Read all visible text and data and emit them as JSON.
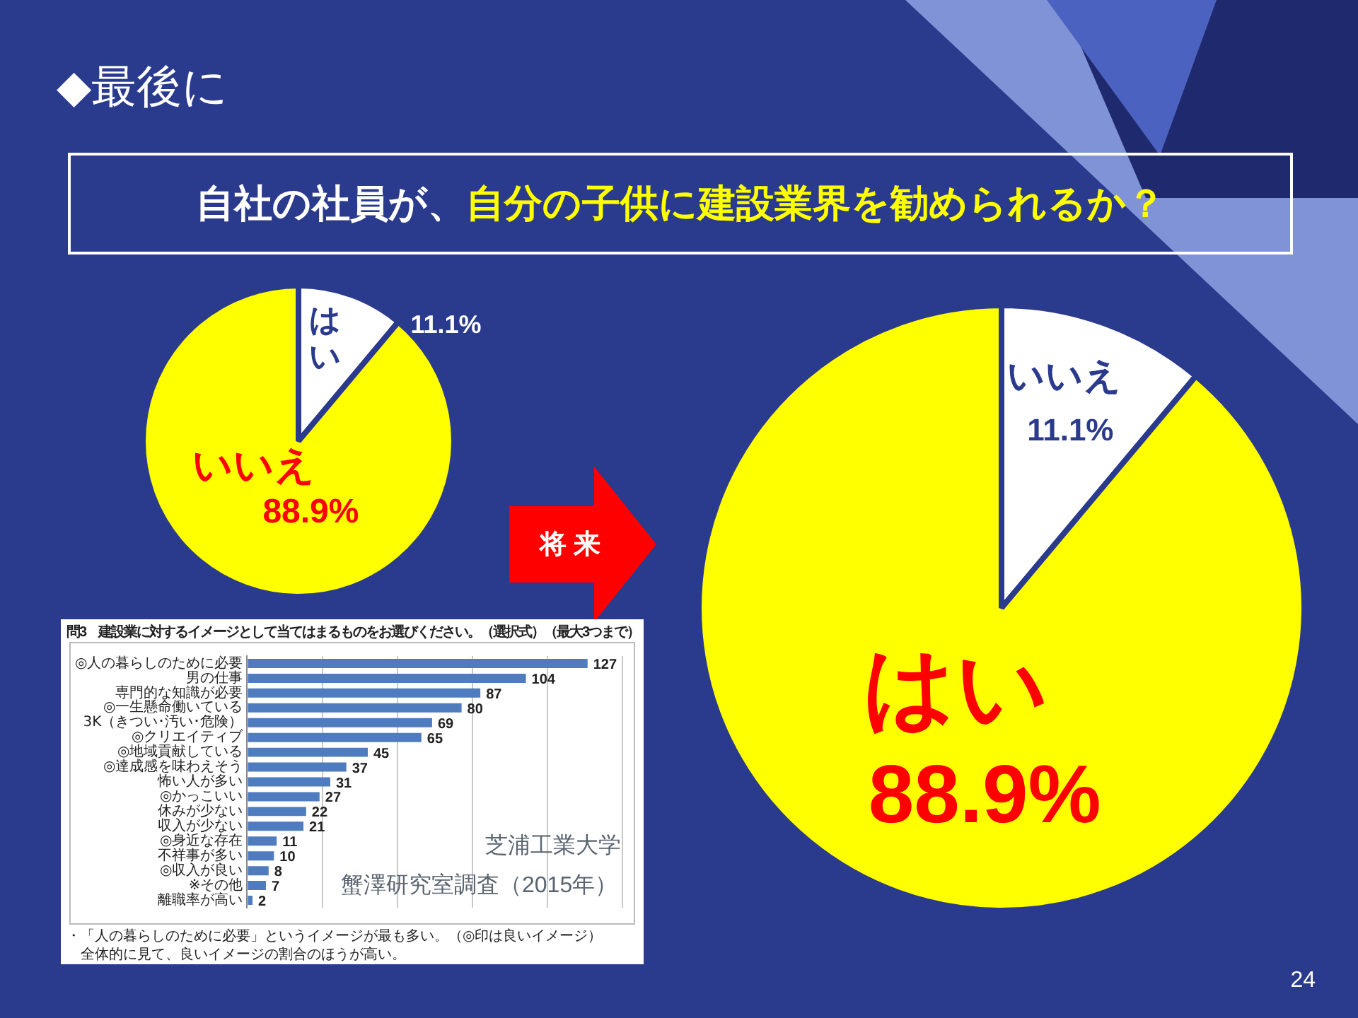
{
  "chart_data": [
    {
      "type": "other",
      "title": "◆最後に",
      "subtitle": "自社の社員が、自分の子供に建設業界を勧められるか？",
      "annotations": [
        "将 来",
        "24"
      ]
    },
    {
      "type": "pie",
      "categories": [
        "はい",
        "いいえ"
      ],
      "values": [
        11.1,
        88.9
      ],
      "colors": [
        "#ffffff",
        "#ffff00"
      ],
      "value_labels": [
        "11.1%",
        "88.9%"
      ]
    },
    {
      "type": "pie",
      "categories": [
        "いいえ",
        "はい"
      ],
      "values": [
        11.1,
        88.9
      ],
      "colors": [
        "#ffffff",
        "#ffff00"
      ],
      "value_labels": [
        "11.1%",
        "88.9%"
      ]
    },
    {
      "type": "bar",
      "orientation": "horizontal",
      "title": "問3　建設業に対するイメージとして当てはまるものをお選びください。（選択式）（最大3つまで）",
      "categories": [
        "◎人の暮らしのために必要",
        "男の仕事",
        "専門的な知識が必要",
        "◎一生懸命働いている",
        "3K（きつい･汚い･危険）",
        "◎クリエイティブ",
        "◎地域貢献している",
        "◎達成感を味わえそう",
        "怖い人が多い",
        "◎かっこいい",
        "休みが少ない",
        "収入が少ない",
        "◎身近な存在",
        "不祥事が多い",
        "◎収入が良い",
        "※その他",
        "離職率が高い"
      ],
      "values": [
        127,
        104,
        87,
        80,
        69,
        65,
        45,
        37,
        31,
        27,
        22,
        21,
        11,
        10,
        8,
        7,
        2
      ],
      "color": "#4f7bbf",
      "data_labels": true,
      "xlim": [
        0,
        140
      ],
      "xticks": [
        {
          "value": 0,
          "label": null
        },
        {
          "value": 28,
          "label": null
        },
        {
          "value": 56,
          "label": null
        },
        {
          "value": 84,
          "label": null
        },
        {
          "value": 112,
          "label": null
        },
        {
          "value": 140,
          "label": null
        }
      ],
      "grid": "x",
      "tick_labels": "y",
      "annotations": [
        "芝浦工業大学",
        "蟹澤研究室調査（2015年）",
        "・「人の暮らしのために必要」というイメージが最も多い。（◎印は良いイメージ）",
        "全体的に見て、良いイメージの割合のほうが高い。"
      ]
    }
  ]
}
